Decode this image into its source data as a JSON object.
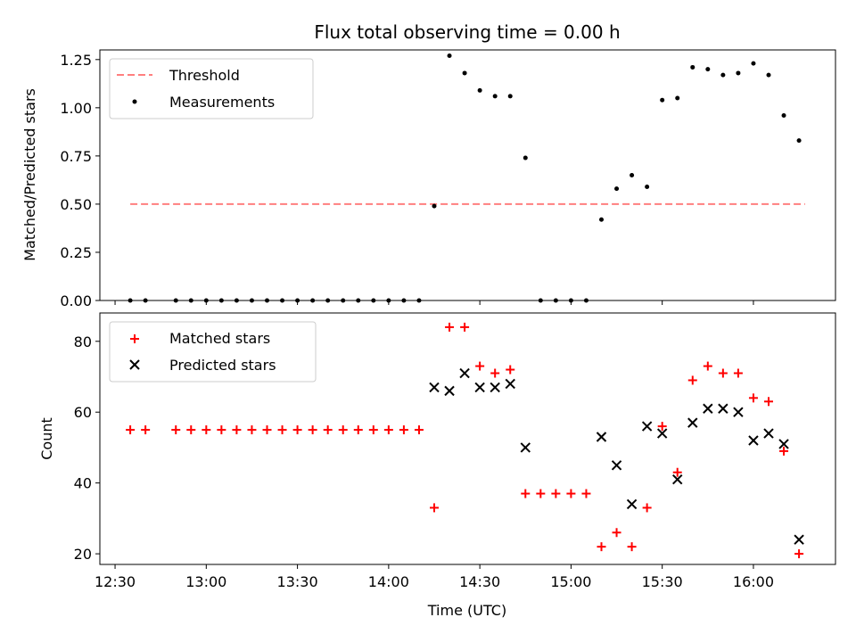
{
  "chart_data": [
    {
      "type": "scatter",
      "title": "Flux total observing time = 0.00 h",
      "xlabel": "",
      "ylabel": "Matched/Predicted stars",
      "ylim": [
        0,
        1.3
      ],
      "yticks": [
        "0.00",
        "0.25",
        "0.50",
        "0.75",
        "1.00",
        "1.25"
      ],
      "legend": {
        "placement": "top-left",
        "entries": [
          "Threshold",
          "Measurements"
        ]
      },
      "threshold": {
        "name": "Threshold",
        "value": 0.5,
        "x_start": "12:35",
        "x_end": "16:17",
        "color": "#ff7f7f"
      },
      "series": [
        {
          "name": "Measurements",
          "color": "#000000",
          "x": [
            "12:35",
            "12:40",
            "12:50",
            "12:55",
            "13:00",
            "13:05",
            "13:10",
            "13:15",
            "13:20",
            "13:25",
            "13:30",
            "13:35",
            "13:40",
            "13:45",
            "13:50",
            "13:55",
            "14:00",
            "14:05",
            "14:10",
            "14:15",
            "14:20",
            "14:25",
            "14:30",
            "14:35",
            "14:40",
            "14:45",
            "14:50",
            "14:55",
            "15:00",
            "15:05",
            "15:10",
            "15:15",
            "15:20",
            "15:25",
            "15:30",
            "15:35",
            "15:40",
            "15:45",
            "15:50",
            "15:55",
            "16:00",
            "16:05",
            "16:10",
            "16:15"
          ],
          "values": [
            0,
            0,
            0,
            0,
            0,
            0,
            0,
            0,
            0,
            0,
            0,
            0,
            0,
            0,
            0,
            0,
            0,
            0,
            0,
            0.49,
            1.27,
            1.18,
            1.09,
            1.06,
            1.06,
            0.74,
            0,
            0,
            0,
            0,
            0.42,
            0.58,
            0.65,
            0.59,
            1.04,
            1.05,
            1.21,
            1.2,
            1.17,
            1.18,
            1.23,
            1.17,
            0.96,
            0.83
          ]
        }
      ]
    },
    {
      "type": "scatter",
      "title": "",
      "xlabel": "Time (UTC)",
      "ylabel": "Count",
      "ylim": [
        17,
        88
      ],
      "yticks": [
        "20",
        "40",
        "60",
        "80"
      ],
      "xticks": [
        "12:30",
        "13:00",
        "13:30",
        "14:00",
        "14:30",
        "15:00",
        "15:30",
        "16:00"
      ],
      "xlim": [
        "12:25",
        "16:27"
      ],
      "legend": {
        "placement": "top-left",
        "entries": [
          "Matched stars",
          "Predicted stars"
        ]
      },
      "series": [
        {
          "name": "Matched stars",
          "marker": "plus",
          "color": "#ff0000",
          "x": [
            "12:35",
            "12:40",
            "12:50",
            "12:55",
            "13:00",
            "13:05",
            "13:10",
            "13:15",
            "13:20",
            "13:25",
            "13:30",
            "13:35",
            "13:40",
            "13:45",
            "13:50",
            "13:55",
            "14:00",
            "14:05",
            "14:10",
            "14:15",
            "14:20",
            "14:25",
            "14:30",
            "14:35",
            "14:40",
            "14:45",
            "14:50",
            "14:55",
            "15:00",
            "15:05",
            "15:10",
            "15:15",
            "15:20",
            "15:25",
            "15:30",
            "15:35",
            "15:40",
            "15:45",
            "15:50",
            "15:55",
            "16:00",
            "16:05",
            "16:10",
            "16:15"
          ],
          "values": [
            55,
            55,
            55,
            55,
            55,
            55,
            55,
            55,
            55,
            55,
            55,
            55,
            55,
            55,
            55,
            55,
            55,
            55,
            55,
            33,
            84,
            84,
            73,
            71,
            72,
            37,
            37,
            37,
            37,
            37,
            22,
            26,
            22,
            33,
            56,
            43,
            69,
            73,
            71,
            71,
            64,
            63,
            49,
            20
          ]
        },
        {
          "name": "Predicted stars",
          "marker": "x",
          "color": "#000000",
          "x": [
            "14:15",
            "14:20",
            "14:25",
            "14:30",
            "14:35",
            "14:40",
            "14:45",
            "15:10",
            "15:15",
            "15:20",
            "15:25",
            "15:30",
            "15:35",
            "15:40",
            "15:45",
            "15:50",
            "15:55",
            "16:00",
            "16:05",
            "16:10",
            "16:15"
          ],
          "values": [
            67,
            66,
            71,
            67,
            67,
            68,
            50,
            53,
            45,
            34,
            56,
            54,
            41,
            57,
            61,
            61,
            60,
            52,
            54,
            51,
            24
          ]
        }
      ]
    }
  ]
}
